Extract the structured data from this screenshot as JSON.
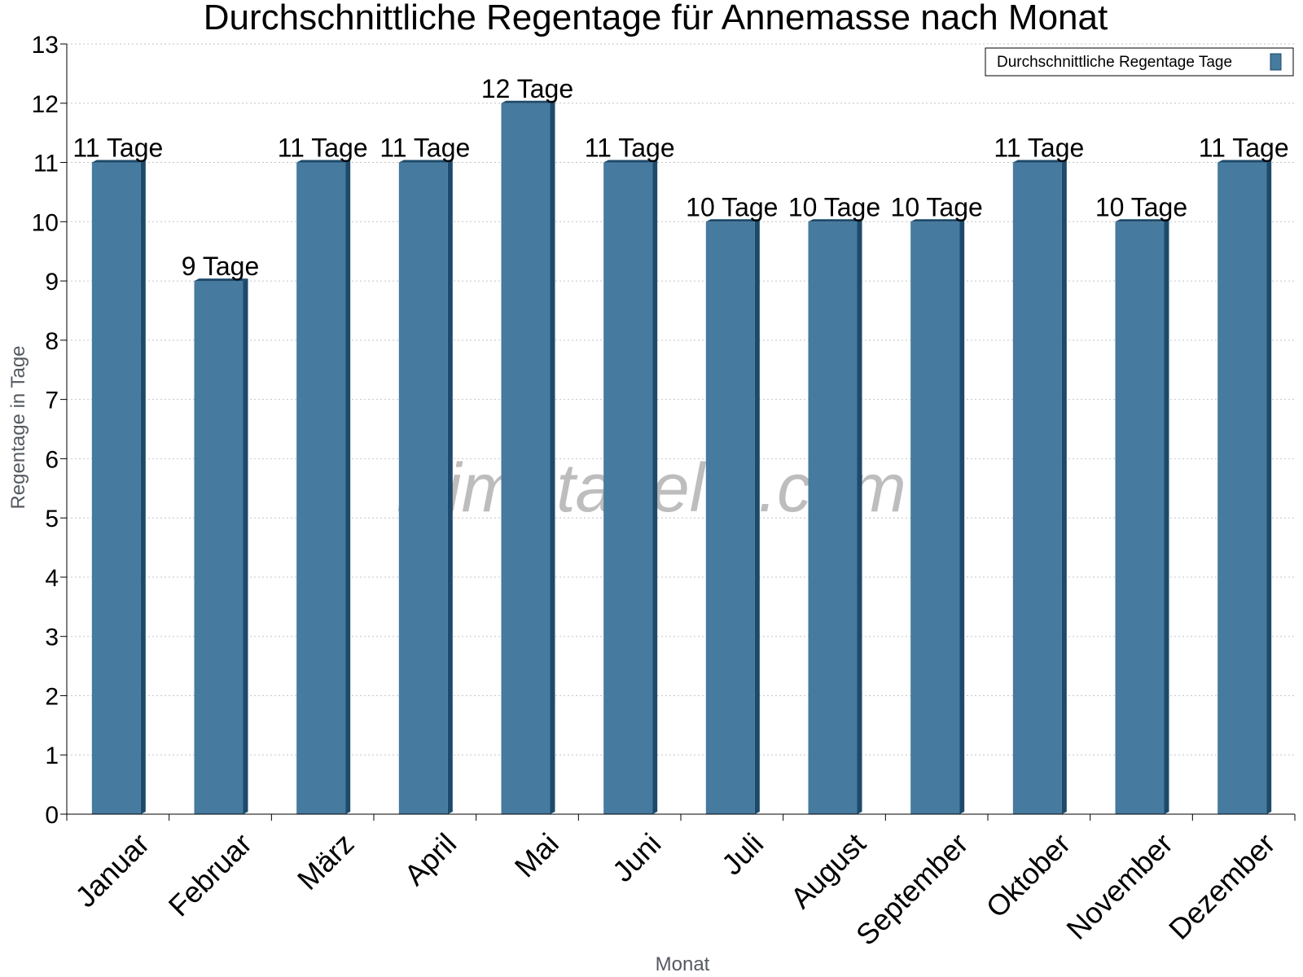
{
  "chart_data": {
    "type": "bar",
    "title": "Durchschnittliche Regentage für Annemasse nach Monat",
    "xlabel": "Monat",
    "ylabel": "Regentage in Tage",
    "ylim": [
      0,
      13
    ],
    "yticks": [
      0,
      1,
      2,
      3,
      4,
      5,
      6,
      7,
      8,
      9,
      10,
      11,
      12,
      13
    ],
    "grid": true,
    "legend_position": "top-right",
    "categories": [
      "Januar",
      "Februar",
      "März",
      "April",
      "Mai",
      "Juni",
      "Juli",
      "August",
      "September",
      "Oktober",
      "November",
      "Dezember"
    ],
    "series": [
      {
        "name": "Durchschnittliche Regentage Tage",
        "color": "#467a9e",
        "values": [
          11,
          9,
          11,
          11,
          12,
          11,
          10,
          10,
          10,
          11,
          10,
          11
        ],
        "data_labels": [
          "11 Tage",
          "9 Tage",
          "11 Tage",
          "11 Tage",
          "12 Tage",
          "11 Tage",
          "10 Tage",
          "10 Tage",
          "10 Tage",
          "11 Tage",
          "10 Tage",
          "11 Tage"
        ]
      }
    ],
    "watermark": "klimatabelle.com"
  }
}
